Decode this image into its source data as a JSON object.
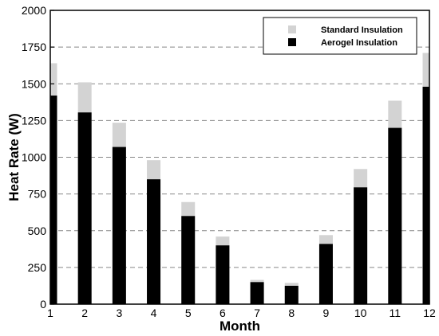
{
  "chart_data": {
    "type": "bar",
    "x": [
      1,
      2,
      3,
      4,
      5,
      6,
      7,
      8,
      9,
      10,
      11,
      12
    ],
    "xlabel": "Month",
    "ylabel": "Heat Rate (W)",
    "xlim": [
      1,
      12
    ],
    "ylim": [
      0,
      2000
    ],
    "yticks": [
      0,
      250,
      500,
      750,
      1000,
      1250,
      1500,
      1750,
      2000
    ],
    "grid": "horizontal-dashed",
    "legend": "top-right",
    "series": [
      {
        "name": "Standard Insulation",
        "color": "#d3d3d3",
        "values": [
          1640,
          1510,
          1235,
          980,
          695,
          460,
          165,
          145,
          470,
          920,
          1385,
          1710
        ]
      },
      {
        "name": "Aerogel Insulation",
        "color": "#000000",
        "values": [
          1420,
          1305,
          1070,
          850,
          600,
          400,
          150,
          125,
          410,
          795,
          1200,
          1480
        ]
      }
    ]
  }
}
